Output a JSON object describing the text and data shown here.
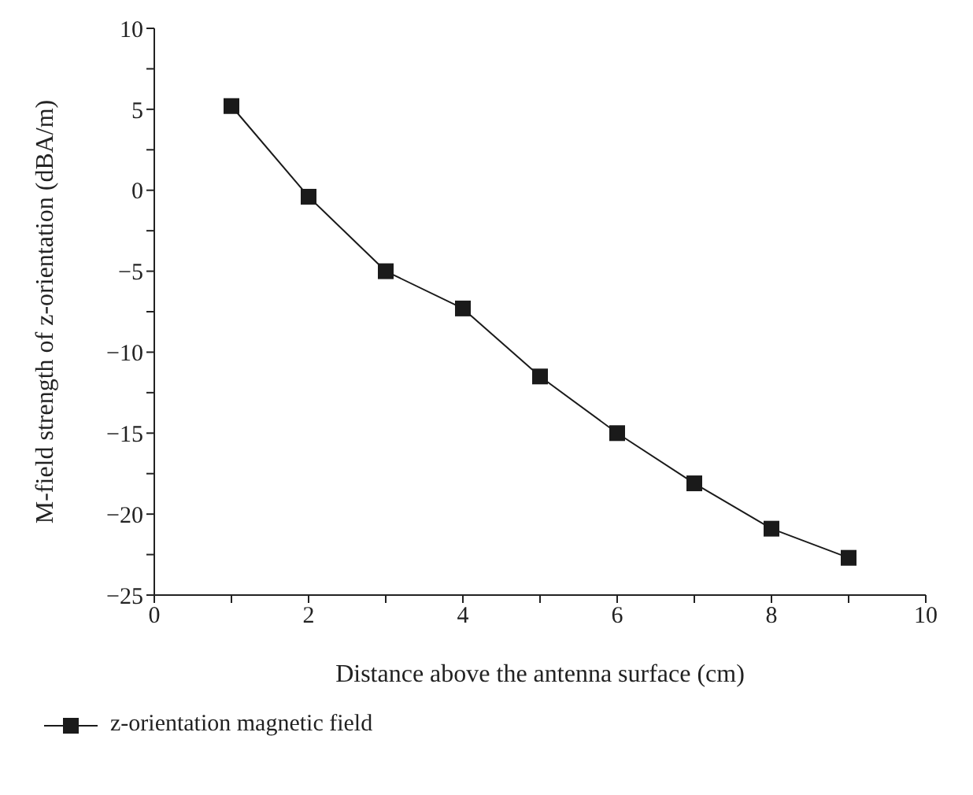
{
  "chart_data": {
    "type": "line",
    "xlabel": "Distance above the antenna surface (cm)",
    "ylabel": "M-field strength of z-orientation (dBA/m)",
    "x": [
      1,
      2,
      3,
      4,
      5,
      6,
      7,
      8,
      9
    ],
    "series": [
      {
        "name": "z-orientation magnetic field",
        "color": "#1a1a1a",
        "values": [
          5.2,
          -0.4,
          -5.0,
          -7.3,
          -11.5,
          -15.0,
          -18.1,
          -20.9,
          -22.7
        ]
      }
    ],
    "xlim": [
      0,
      10
    ],
    "xticks": [
      0,
      {
        "value": 1,
        "label": null
      },
      2,
      {
        "value": 3,
        "label": null
      },
      4,
      {
        "value": 5,
        "label": null
      },
      6,
      {
        "value": 7,
        "label": null
      },
      8,
      {
        "value": 9,
        "label": null
      },
      10
    ],
    "ylim": [
      -25,
      10
    ],
    "yticks": [
      -25,
      {
        "value": -22.5,
        "label": null
      },
      -20,
      {
        "value": -17.5,
        "label": null
      },
      -15,
      {
        "value": -12.5,
        "label": null
      },
      -10,
      {
        "value": -7.5,
        "label": null
      },
      -5,
      {
        "value": -2.5,
        "label": null
      },
      0,
      {
        "value": 2.5,
        "label": null
      },
      5,
      {
        "value": 7.5,
        "label": null
      },
      10
    ],
    "marker": "square",
    "line_style": "solid",
    "grid": false,
    "legend": "bottom left"
  }
}
